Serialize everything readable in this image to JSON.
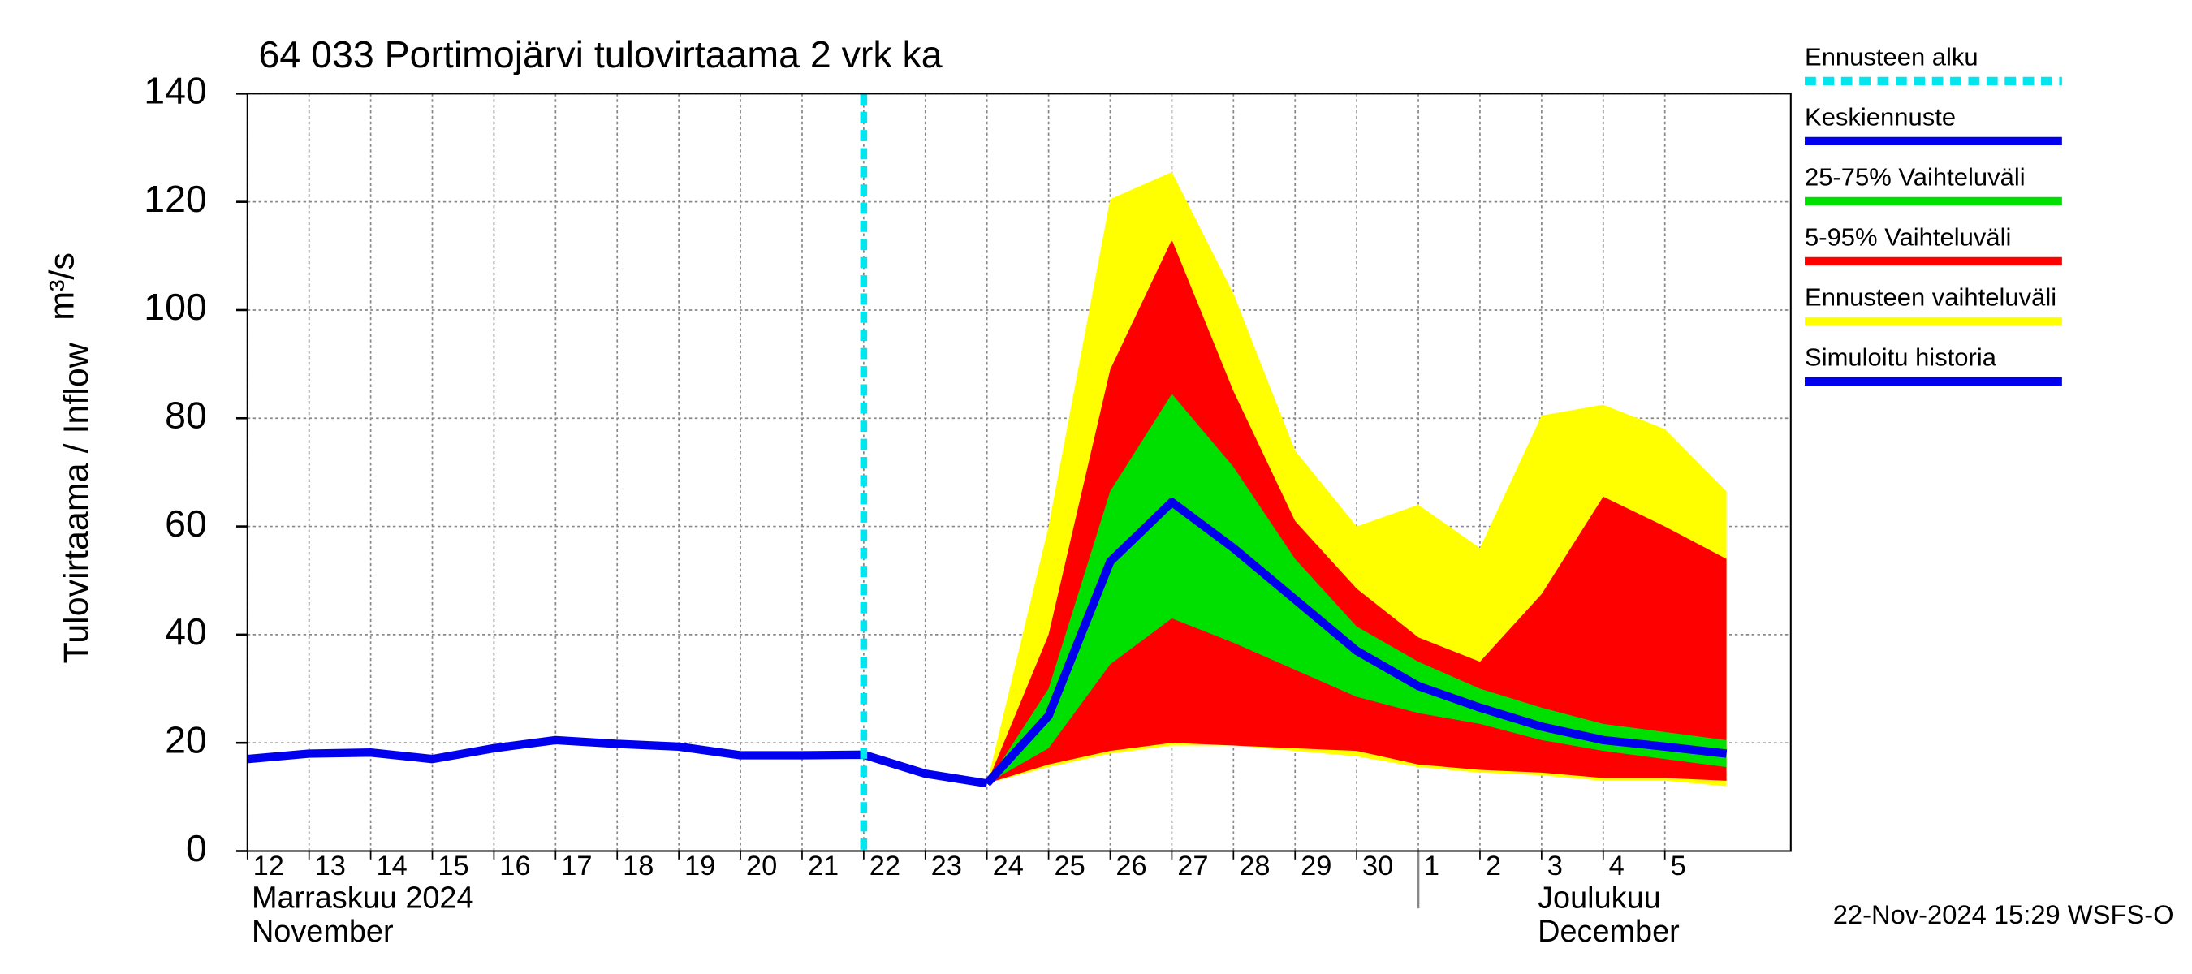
{
  "chart_data": {
    "type": "band-forecast",
    "title": "64 033 Portimojärvi tulovirtaama 2 vrk ka",
    "ylabel": "Tulovirtaama / Inflow",
    "yunit": "m³/s",
    "footer": "22-Nov-2024 15:29 WSFS-O",
    "x": [
      "2024-11-12",
      "2024-11-13",
      "2024-11-14",
      "2024-11-15",
      "2024-11-16",
      "2024-11-17",
      "2024-11-18",
      "2024-11-19",
      "2024-11-20",
      "2024-11-21",
      "2024-11-22",
      "2024-11-23",
      "2024-11-24",
      "2024-11-25",
      "2024-11-26",
      "2024-11-27",
      "2024-11-28",
      "2024-11-29",
      "2024-11-30",
      "2024-12-01",
      "2024-12-02",
      "2024-12-03",
      "2024-12-04",
      "2024-12-05",
      "2024-12-06"
    ],
    "xlim": [
      "2024-11-12",
      "2024-12-06"
    ],
    "xticks": [
      {
        "value": "2024-11-12",
        "label": "12"
      },
      {
        "value": "2024-11-13",
        "label": "13"
      },
      {
        "value": "2024-11-14",
        "label": "14"
      },
      {
        "value": "2024-11-15",
        "label": "15"
      },
      {
        "value": "2024-11-16",
        "label": "16"
      },
      {
        "value": "2024-11-17",
        "label": "17"
      },
      {
        "value": "2024-11-18",
        "label": "18"
      },
      {
        "value": "2024-11-19",
        "label": "19"
      },
      {
        "value": "2024-11-20",
        "label": "20"
      },
      {
        "value": "2024-11-21",
        "label": "21"
      },
      {
        "value": "2024-11-22",
        "label": "22"
      },
      {
        "value": "2024-11-23",
        "label": "23"
      },
      {
        "value": "2024-11-24",
        "label": "24"
      },
      {
        "value": "2024-11-25",
        "label": "25"
      },
      {
        "value": "2024-11-26",
        "label": "26"
      },
      {
        "value": "2024-11-27",
        "label": "27"
      },
      {
        "value": "2024-11-28",
        "label": "28"
      },
      {
        "value": "2024-11-29",
        "label": "29"
      },
      {
        "value": "2024-11-30",
        "label": "30"
      },
      {
        "value": "2024-12-01",
        "label": "1"
      },
      {
        "value": "2024-12-02",
        "label": "2"
      },
      {
        "value": "2024-12-03",
        "label": "3"
      },
      {
        "value": "2024-12-04",
        "label": "4"
      },
      {
        "value": "2024-12-05",
        "label": "5"
      }
    ],
    "month_labels": [
      {
        "text": "Marraskuu 2024",
        "sub": "November"
      },
      {
        "text": "Joulukuu",
        "sub": "December"
      }
    ],
    "ylim": [
      0,
      140
    ],
    "yticks": [
      0,
      20,
      40,
      60,
      80,
      100,
      120,
      140
    ],
    "grid": true,
    "forecast_start": {
      "name": "Ennusteen alku",
      "x": "2024-11-22",
      "color": "#00e5ee"
    },
    "bands": [
      {
        "name": "Ennusteen vaihteluväli",
        "color": "#ffff00",
        "upper": [
          null,
          null,
          null,
          null,
          null,
          null,
          null,
          null,
          null,
          null,
          null,
          null,
          12.5,
          60,
          120.5,
          125.5,
          103,
          74,
          60,
          64,
          56,
          80.5,
          82.5,
          78,
          66.5
        ],
        "lower": [
          null,
          null,
          null,
          null,
          null,
          null,
          null,
          null,
          null,
          null,
          null,
          null,
          12.5,
          15.5,
          18,
          19.5,
          19.5,
          18.5,
          17.5,
          15.5,
          14.5,
          14,
          13,
          13,
          12
        ]
      },
      {
        "name": "5-95% Vaihteluväli",
        "color": "#ff0000",
        "upper": [
          null,
          null,
          null,
          null,
          null,
          null,
          null,
          null,
          null,
          null,
          null,
          null,
          12.5,
          40,
          89,
          113,
          85,
          61,
          48.5,
          39.5,
          35,
          47.5,
          65.5,
          60,
          54
        ],
        "lower": [
          null,
          null,
          null,
          null,
          null,
          null,
          null,
          null,
          null,
          null,
          null,
          null,
          12.5,
          16,
          18.5,
          20,
          19.5,
          19,
          18.5,
          16,
          15,
          14.5,
          13.5,
          13.5,
          13
        ]
      },
      {
        "name": "25-75% Vaihteluväli",
        "color": "#00e000",
        "upper": [
          null,
          null,
          null,
          null,
          null,
          null,
          null,
          null,
          null,
          null,
          null,
          null,
          12.5,
          30,
          66.5,
          84.5,
          71,
          54,
          41.5,
          35,
          30,
          26.5,
          23.5,
          22,
          20.5
        ],
        "lower": [
          null,
          null,
          null,
          null,
          null,
          null,
          null,
          null,
          null,
          null,
          null,
          null,
          12.5,
          19,
          34.5,
          43,
          38.5,
          33.5,
          28.5,
          25.5,
          23.5,
          20.5,
          18.5,
          17,
          15.5
        ]
      }
    ],
    "series": [
      {
        "name": "Keskiennuste",
        "color": "#0000ee",
        "values": [
          null,
          null,
          null,
          null,
          null,
          null,
          null,
          null,
          null,
          null,
          null,
          null,
          12.5,
          25,
          53.5,
          64.5,
          56,
          46.5,
          37,
          30.5,
          26.5,
          23,
          20.5,
          19.3,
          18
        ]
      },
      {
        "name": "Simuloitu historia",
        "color": "#0000ee",
        "values": [
          17,
          18,
          18.2,
          17,
          19,
          20.5,
          19.8,
          19.3,
          17.7,
          17.7,
          17.8,
          14.3,
          12.5,
          null,
          null,
          null,
          null,
          null,
          null,
          null,
          null,
          null,
          null,
          null,
          null
        ]
      }
    ]
  }
}
